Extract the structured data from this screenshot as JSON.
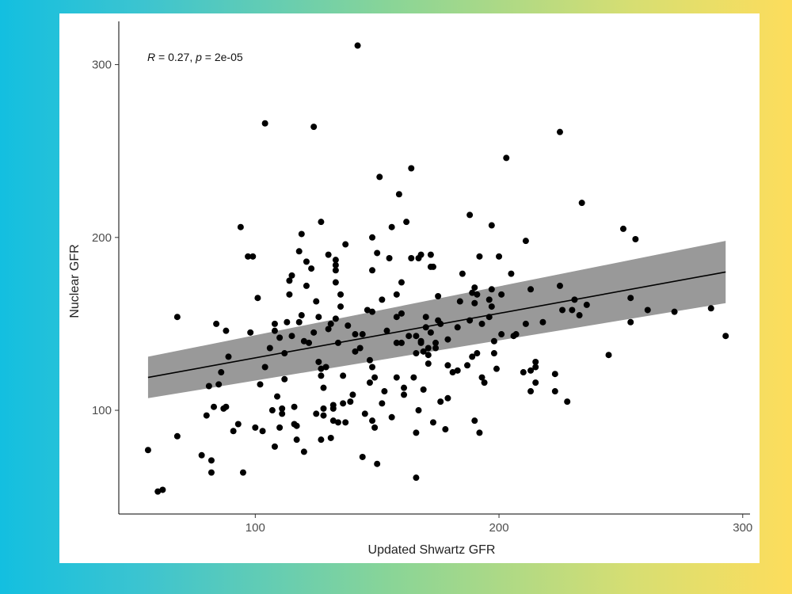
{
  "chart_data": {
    "type": "scatter",
    "title": "",
    "xlabel": "Updated Shwartz GFR",
    "ylabel": "Nuclear GFR",
    "xlim": [
      44,
      303
    ],
    "ylim": [
      40,
      325
    ],
    "x_ticks": [
      100,
      200,
      300
    ],
    "y_ticks": [
      100,
      200,
      300
    ],
    "grid": false,
    "annotation": {
      "r_label": "R",
      "r_value": " = 0.27, ",
      "p_label": "p",
      "p_value": " = 2e-05"
    },
    "regression": {
      "x_start": 56,
      "x_end": 293,
      "fit": [
        119,
        180
      ],
      "ci_lower": [
        107,
        162
      ],
      "ci_upper": [
        131,
        198
      ]
    },
    "colors": {
      "points": "#000000",
      "fit_line": "#000000",
      "ci_band": "#999999",
      "axis": "#000000"
    },
    "points": [
      [
        56,
        77
      ],
      [
        60,
        53
      ],
      [
        62,
        54
      ],
      [
        68,
        85
      ],
      [
        68,
        154
      ],
      [
        78,
        74
      ],
      [
        80,
        97
      ],
      [
        81,
        114
      ],
      [
        82,
        64
      ],
      [
        82,
        71
      ],
      [
        83,
        102
      ],
      [
        84,
        150
      ],
      [
        85,
        115
      ],
      [
        86,
        122
      ],
      [
        87,
        101
      ],
      [
        88,
        102
      ],
      [
        88,
        146
      ],
      [
        89,
        131
      ],
      [
        91,
        88
      ],
      [
        93,
        92
      ],
      [
        94,
        206
      ],
      [
        95,
        64
      ],
      [
        97,
        189
      ],
      [
        98,
        145
      ],
      [
        99,
        189
      ],
      [
        100,
        90
      ],
      [
        101,
        165
      ],
      [
        102,
        115
      ],
      [
        103,
        88
      ],
      [
        104,
        125
      ],
      [
        104,
        266
      ],
      [
        106,
        136
      ],
      [
        107,
        100
      ],
      [
        108,
        150
      ],
      [
        108,
        146
      ],
      [
        108,
        79
      ],
      [
        109,
        108
      ],
      [
        110,
        142
      ],
      [
        110,
        90
      ],
      [
        111,
        98
      ],
      [
        111,
        101
      ],
      [
        112,
        118
      ],
      [
        112,
        133
      ],
      [
        113,
        151
      ],
      [
        114,
        167
      ],
      [
        114,
        175
      ],
      [
        115,
        143
      ],
      [
        115,
        178
      ],
      [
        116,
        102
      ],
      [
        116,
        92
      ],
      [
        117,
        83
      ],
      [
        117,
        91
      ],
      [
        118,
        151
      ],
      [
        118,
        192
      ],
      [
        119,
        202
      ],
      [
        119,
        155
      ],
      [
        120,
        140
      ],
      [
        120,
        76
      ],
      [
        121,
        172
      ],
      [
        121,
        186
      ],
      [
        122,
        139
      ],
      [
        123,
        182
      ],
      [
        124,
        145
      ],
      [
        124,
        264
      ],
      [
        125,
        163
      ],
      [
        125,
        98
      ],
      [
        126,
        128
      ],
      [
        126,
        154
      ],
      [
        127,
        124
      ],
      [
        127,
        120
      ],
      [
        127,
        83
      ],
      [
        127,
        209
      ],
      [
        128,
        97
      ],
      [
        128,
        113
      ],
      [
        128,
        101
      ],
      [
        129,
        125
      ],
      [
        130,
        147
      ],
      [
        130,
        190
      ],
      [
        131,
        150
      ],
      [
        131,
        84
      ],
      [
        132,
        103
      ],
      [
        132,
        101
      ],
      [
        132,
        94
      ],
      [
        133,
        187
      ],
      [
        133,
        184
      ],
      [
        133,
        181
      ],
      [
        133,
        174
      ],
      [
        133,
        153
      ],
      [
        134,
        93
      ],
      [
        134,
        139
      ],
      [
        135,
        160
      ],
      [
        135,
        167
      ],
      [
        136,
        120
      ],
      [
        136,
        104
      ],
      [
        137,
        196
      ],
      [
        137,
        93
      ],
      [
        138,
        149
      ],
      [
        139,
        105
      ],
      [
        140,
        109
      ],
      [
        141,
        144
      ],
      [
        141,
        134
      ],
      [
        142,
        311
      ],
      [
        143,
        136
      ],
      [
        144,
        144
      ],
      [
        144,
        73
      ],
      [
        145,
        98
      ],
      [
        146,
        158
      ],
      [
        147,
        116
      ],
      [
        147,
        129
      ],
      [
        148,
        200
      ],
      [
        148,
        181
      ],
      [
        148,
        157
      ],
      [
        148,
        125
      ],
      [
        148,
        94
      ],
      [
        149,
        119
      ],
      [
        149,
        90
      ],
      [
        150,
        69
      ],
      [
        150,
        191
      ],
      [
        151,
        235
      ],
      [
        152,
        164
      ],
      [
        152,
        104
      ],
      [
        153,
        111
      ],
      [
        154,
        146
      ],
      [
        155,
        188
      ],
      [
        156,
        206
      ],
      [
        156,
        96
      ],
      [
        158,
        154
      ],
      [
        158,
        139
      ],
      [
        158,
        167
      ],
      [
        158,
        119
      ],
      [
        159,
        225
      ],
      [
        160,
        174
      ],
      [
        160,
        156
      ],
      [
        160,
        139
      ],
      [
        161,
        109
      ],
      [
        161,
        113
      ],
      [
        162,
        209
      ],
      [
        163,
        143
      ],
      [
        164,
        240
      ],
      [
        164,
        188
      ],
      [
        165,
        119
      ],
      [
        166,
        61
      ],
      [
        166,
        87
      ],
      [
        166,
        143
      ],
      [
        166,
        133
      ],
      [
        167,
        100
      ],
      [
        167,
        188
      ],
      [
        168,
        140
      ],
      [
        168,
        139
      ],
      [
        168,
        190
      ],
      [
        169,
        134
      ],
      [
        169,
        112
      ],
      [
        170,
        148
      ],
      [
        170,
        154
      ],
      [
        171,
        127
      ],
      [
        171,
        136
      ],
      [
        171,
        132
      ],
      [
        172,
        145
      ],
      [
        172,
        183
      ],
      [
        172,
        190
      ],
      [
        173,
        183
      ],
      [
        173,
        93
      ],
      [
        174,
        139
      ],
      [
        174,
        136
      ],
      [
        175,
        152
      ],
      [
        175,
        166
      ],
      [
        176,
        105
      ],
      [
        176,
        150
      ],
      [
        178,
        89
      ],
      [
        179,
        107
      ],
      [
        179,
        126
      ],
      [
        179,
        141
      ],
      [
        181,
        122
      ],
      [
        183,
        123
      ],
      [
        183,
        148
      ],
      [
        184,
        163
      ],
      [
        185,
        179
      ],
      [
        187,
        126
      ],
      [
        188,
        152
      ],
      [
        188,
        213
      ],
      [
        189,
        131
      ],
      [
        189,
        168
      ],
      [
        190,
        94
      ],
      [
        190,
        162
      ],
      [
        190,
        171
      ],
      [
        191,
        167
      ],
      [
        191,
        133
      ],
      [
        192,
        189
      ],
      [
        192,
        87
      ],
      [
        193,
        150
      ],
      [
        193,
        119
      ],
      [
        194,
        116
      ],
      [
        196,
        164
      ],
      [
        196,
        154
      ],
      [
        197,
        170
      ],
      [
        197,
        160
      ],
      [
        197,
        207
      ],
      [
        198,
        140
      ],
      [
        198,
        133
      ],
      [
        199,
        124
      ],
      [
        200,
        189
      ],
      [
        201,
        144
      ],
      [
        201,
        167
      ],
      [
        203,
        246
      ],
      [
        205,
        179
      ],
      [
        206,
        143
      ],
      [
        207,
        144
      ],
      [
        210,
        122
      ],
      [
        211,
        198
      ],
      [
        211,
        150
      ],
      [
        213,
        170
      ],
      [
        213,
        111
      ],
      [
        213,
        123
      ],
      [
        215,
        125
      ],
      [
        215,
        116
      ],
      [
        215,
        128
      ],
      [
        218,
        151
      ],
      [
        223,
        121
      ],
      [
        223,
        111
      ],
      [
        225,
        172
      ],
      [
        225,
        261
      ],
      [
        226,
        158
      ],
      [
        228,
        105
      ],
      [
        230,
        158
      ],
      [
        231,
        164
      ],
      [
        233,
        155
      ],
      [
        234,
        220
      ],
      [
        236,
        161
      ],
      [
        245,
        132
      ],
      [
        251,
        205
      ],
      [
        254,
        165
      ],
      [
        254,
        151
      ],
      [
        256,
        199
      ],
      [
        261,
        158
      ],
      [
        272,
        157
      ],
      [
        287,
        159
      ],
      [
        293,
        143
      ]
    ]
  }
}
